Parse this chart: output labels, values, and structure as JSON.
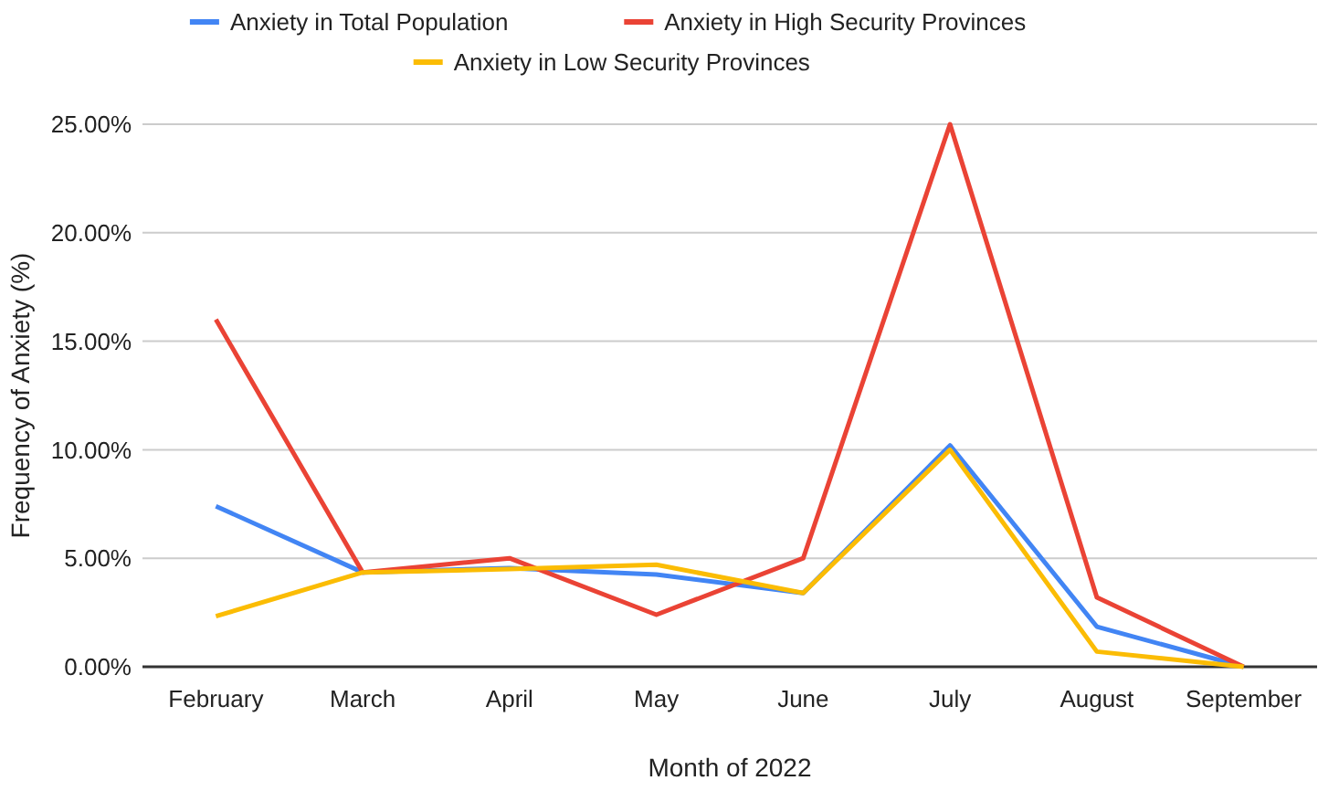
{
  "chart_data": {
    "type": "line",
    "xlabel": "Month of 2022",
    "ylabel": "Frequency of Anxiety (%)",
    "categories": [
      "February",
      "March",
      "April",
      "May",
      "June",
      "July",
      "August",
      "September"
    ],
    "series": [
      {
        "name": "Anxiety in Total Population",
        "color": "#4285f4",
        "values": [
          7.4,
          4.35,
          4.55,
          4.25,
          3.4,
          10.2,
          1.85,
          0
        ]
      },
      {
        "name": "Anxiety in High Security Provinces",
        "color": "#ea4335",
        "values": [
          16.0,
          4.35,
          5.0,
          2.4,
          5.0,
          25.0,
          3.2,
          0
        ]
      },
      {
        "name": "Anxiety in Low Security Provinces",
        "color": "#fbbc04",
        "values": [
          2.33,
          4.35,
          4.5,
          4.7,
          3.4,
          10.0,
          0.7,
          0
        ]
      }
    ],
    "ylim": [
      0,
      25
    ],
    "yticks": [
      {
        "value": 0,
        "label": "0.00%"
      },
      {
        "value": 5,
        "label": "5.00%"
      },
      {
        "value": 10,
        "label": "10.00%"
      },
      {
        "value": 15,
        "label": "15.00%"
      },
      {
        "value": 20,
        "label": "20.00%"
      },
      {
        "value": 25,
        "label": "25.00%"
      }
    ],
    "grid": "y",
    "legend": "top",
    "marker": "none",
    "line_style": "solid"
  }
}
